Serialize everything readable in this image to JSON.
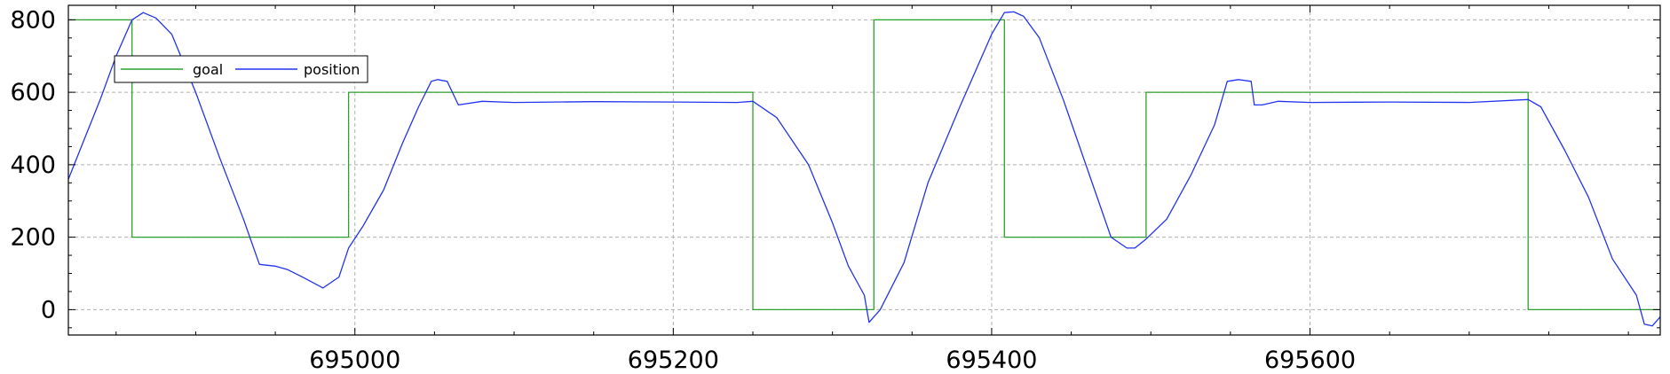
{
  "chart_data": {
    "type": "line",
    "title": "",
    "xlabel": "",
    "ylabel": "",
    "xlim": [
      694820,
      695820
    ],
    "ylim": [
      -70,
      840
    ],
    "xticks": [
      695000,
      695200,
      695400,
      695600
    ],
    "xtick_labels": [
      "695000",
      "695200",
      "695400",
      "695600"
    ],
    "yticks": [
      0,
      200,
      400,
      600,
      800
    ],
    "ytick_labels": [
      "0",
      "200",
      "400",
      "600",
      "800"
    ],
    "grid": true,
    "legend_position": "upper-left",
    "series": [
      {
        "name": "goal",
        "color": "#2ca02c",
        "step": true,
        "x": [
          694820,
          694860,
          694860,
          694996,
          694996,
          695250,
          695250,
          695326,
          695326,
          695408,
          695408,
          695497,
          695497,
          695737,
          695737,
          695820
        ],
        "y": [
          800,
          800,
          200,
          200,
          600,
          600,
          0,
          0,
          800,
          800,
          200,
          200,
          600,
          600,
          0,
          0
        ]
      },
      {
        "name": "position",
        "color": "#2233ee",
        "step": false,
        "x": [
          694820,
          694830,
          694840,
          694850,
          694860,
          694867,
          694875,
          694885,
          694900,
          694915,
          694930,
          694940,
          694950,
          694958,
          694967,
          694980,
          694990,
          694996,
          695005,
          695018,
          695030,
          695040,
          695048,
          695052,
          695058,
          695065,
          695080,
          695100,
          695150,
          695200,
          695240,
          695250,
          695265,
          695285,
          695300,
          695310,
          695320,
          695323,
          695330,
          695345,
          695360,
          695380,
          695400,
          695408,
          695414,
          695420,
          695430,
          695445,
          695460,
          695475,
          695485,
          695490,
          695497,
          695510,
          695525,
          695540,
          695548,
          695555,
          695563,
          695565,
          695570,
          695580,
          695600,
          695650,
          695700,
          695737,
          695745,
          695760,
          695775,
          695790,
          695805,
          695810,
          695815,
          695820
        ],
        "y": [
          360,
          470,
          580,
          700,
          800,
          820,
          805,
          760,
          600,
          420,
          250,
          125,
          120,
          110,
          90,
          60,
          90,
          170,
          230,
          330,
          460,
          560,
          630,
          635,
          630,
          565,
          575,
          572,
          574,
          573,
          572,
          575,
          530,
          400,
          240,
          120,
          40,
          -35,
          0,
          130,
          350,
          560,
          760,
          820,
          822,
          810,
          750,
          580,
          390,
          200,
          170,
          170,
          195,
          250,
          370,
          510,
          630,
          635,
          630,
          565,
          565,
          575,
          572,
          573,
          572,
          580,
          560,
          440,
          310,
          140,
          40,
          -40,
          -45,
          -20
        ]
      }
    ]
  }
}
